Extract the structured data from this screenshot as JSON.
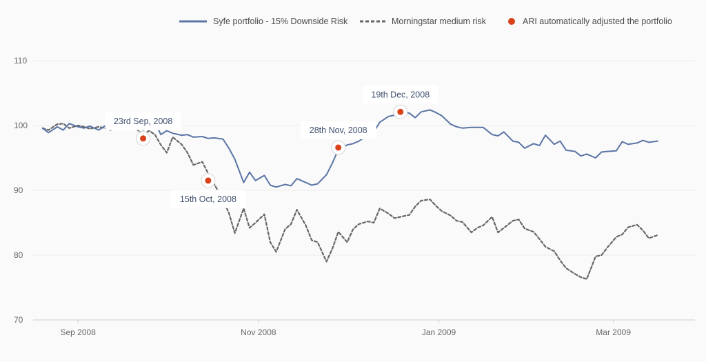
{
  "chart_data": {
    "type": "line",
    "xlabel": "",
    "ylabel": "",
    "ylim": [
      70,
      110
    ],
    "yticks": [
      "70",
      "80",
      "90",
      "100",
      "110"
    ],
    "xticks": [
      "Sep 2008",
      "Nov 2008",
      "Jan 2009",
      "Mar 2009"
    ],
    "grid": "horizontal",
    "legend_position": "top-right",
    "colors": {
      "syfe": "#5a74a5",
      "morningstar": "#666666",
      "ari": "#d9421a"
    },
    "legend": [
      {
        "label": "Syfe portfolio - 15% Downside Risk",
        "style": "solid-line"
      },
      {
        "label": "Morningstar medium risk",
        "style": "dashed-line"
      },
      {
        "label": "ARI automatically adjusted the portfolio",
        "style": "marker"
      }
    ],
    "series": [
      {
        "name": "Syfe portfolio - 15% Downside Risk",
        "style": "solid",
        "points": [
          [
            "2008-08-20",
            99.6
          ],
          [
            "2008-08-22",
            98.9
          ],
          [
            "2008-08-25",
            99.8
          ],
          [
            "2008-08-27",
            99.3
          ],
          [
            "2008-08-29",
            100.3
          ],
          [
            "2008-09-01",
            99.8
          ],
          [
            "2008-09-03",
            99.6
          ],
          [
            "2008-09-05",
            99.9
          ],
          [
            "2008-09-08",
            99.3
          ],
          [
            "2008-09-10",
            99.9
          ],
          [
            "2008-09-12",
            99.5
          ],
          [
            "2008-09-15",
            101.0
          ],
          [
            "2008-09-17",
            100.3
          ],
          [
            "2008-09-19",
            100.5
          ],
          [
            "2008-09-22",
            100.2
          ],
          [
            "2008-09-23",
            99.3
          ],
          [
            "2008-09-25",
            99.8
          ],
          [
            "2008-09-27",
            100.5
          ],
          [
            "2008-09-29",
            98.6
          ],
          [
            "2008-10-01",
            99.2
          ],
          [
            "2008-10-03",
            98.8
          ],
          [
            "2008-10-06",
            98.5
          ],
          [
            "2008-10-08",
            98.6
          ],
          [
            "2008-10-10",
            98.2
          ],
          [
            "2008-10-13",
            98.3
          ],
          [
            "2008-10-15",
            98.0
          ],
          [
            "2008-10-17",
            98.1
          ],
          [
            "2008-10-20",
            97.9
          ],
          [
            "2008-10-22",
            96.5
          ],
          [
            "2008-10-24",
            94.8
          ],
          [
            "2008-10-27",
            91.2
          ],
          [
            "2008-10-29",
            92.8
          ],
          [
            "2008-10-31",
            91.5
          ],
          [
            "2008-11-03",
            92.3
          ],
          [
            "2008-11-05",
            90.8
          ],
          [
            "2008-11-07",
            90.5
          ],
          [
            "2008-11-10",
            90.9
          ],
          [
            "2008-11-12",
            90.7
          ],
          [
            "2008-11-14",
            91.8
          ],
          [
            "2008-11-17",
            91.2
          ],
          [
            "2008-11-19",
            90.8
          ],
          [
            "2008-11-21",
            91.0
          ],
          [
            "2008-11-24",
            92.4
          ],
          [
            "2008-11-26",
            94.2
          ],
          [
            "2008-11-28",
            96.3
          ],
          [
            "2008-12-01",
            97.0
          ],
          [
            "2008-12-03",
            97.2
          ],
          [
            "2008-12-05",
            97.6
          ],
          [
            "2008-12-08",
            98.5
          ],
          [
            "2008-12-10",
            99.0
          ],
          [
            "2008-12-12",
            100.5
          ],
          [
            "2008-12-15",
            101.4
          ],
          [
            "2008-12-17",
            101.6
          ],
          [
            "2008-12-19",
            102.2
          ],
          [
            "2008-12-22",
            101.9
          ],
          [
            "2008-12-24",
            101.2
          ],
          [
            "2008-12-26",
            102.1
          ],
          [
            "2008-12-29",
            102.4
          ],
          [
            "2008-12-31",
            102.0
          ],
          [
            "2009-01-02",
            101.5
          ],
          [
            "2009-01-05",
            100.2
          ],
          [
            "2009-01-07",
            99.8
          ],
          [
            "2009-01-09",
            99.6
          ],
          [
            "2009-01-12",
            99.7
          ],
          [
            "2009-01-14",
            99.7
          ],
          [
            "2009-01-16",
            99.7
          ],
          [
            "2009-01-19",
            98.6
          ],
          [
            "2009-01-21",
            98.4
          ],
          [
            "2009-01-23",
            99.0
          ],
          [
            "2009-01-26",
            97.6
          ],
          [
            "2009-01-28",
            97.4
          ],
          [
            "2009-01-30",
            96.5
          ],
          [
            "2009-02-02",
            97.2
          ],
          [
            "2009-02-04",
            96.9
          ],
          [
            "2009-02-06",
            98.5
          ],
          [
            "2009-02-09",
            97.1
          ],
          [
            "2009-02-11",
            97.6
          ],
          [
            "2009-02-13",
            96.2
          ],
          [
            "2009-02-16",
            96.0
          ],
          [
            "2009-02-18",
            95.3
          ],
          [
            "2009-02-20",
            95.6
          ],
          [
            "2009-02-23",
            95.0
          ],
          [
            "2009-02-25",
            95.9
          ],
          [
            "2009-02-27",
            96.0
          ],
          [
            "2009-03-02",
            96.1
          ],
          [
            "2009-03-04",
            97.5
          ],
          [
            "2009-03-06",
            97.1
          ],
          [
            "2009-03-09",
            97.3
          ],
          [
            "2009-03-11",
            97.7
          ],
          [
            "2009-03-13",
            97.4
          ],
          [
            "2009-03-16",
            97.6
          ]
        ]
      },
      {
        "name": "Morningstar medium risk",
        "style": "dashed",
        "points": [
          [
            "2008-08-20",
            99.6
          ],
          [
            "2008-08-22",
            99.3
          ],
          [
            "2008-08-25",
            100.2
          ],
          [
            "2008-08-27",
            100.3
          ],
          [
            "2008-08-29",
            99.6
          ],
          [
            "2008-09-01",
            100.0
          ],
          [
            "2008-09-03",
            99.8
          ],
          [
            "2008-09-05",
            99.5
          ],
          [
            "2008-09-08",
            99.8
          ],
          [
            "2008-09-10",
            99.6
          ],
          [
            "2008-09-12",
            99.3
          ],
          [
            "2008-09-15",
            100.9
          ],
          [
            "2008-09-17",
            100.4
          ],
          [
            "2008-09-19",
            100.0
          ],
          [
            "2008-09-22",
            99.0
          ],
          [
            "2008-09-23",
            98.5
          ],
          [
            "2008-09-25",
            99.2
          ],
          [
            "2008-09-27",
            98.6
          ],
          [
            "2008-09-29",
            97.0
          ],
          [
            "2008-10-01",
            95.8
          ],
          [
            "2008-10-03",
            98.2
          ],
          [
            "2008-10-06",
            97.1
          ],
          [
            "2008-10-08",
            95.8
          ],
          [
            "2008-10-10",
            93.9
          ],
          [
            "2008-10-13",
            94.4
          ],
          [
            "2008-10-15",
            92.6
          ],
          [
            "2008-10-17",
            91.0
          ],
          [
            "2008-10-20",
            88.5
          ],
          [
            "2008-10-22",
            86.5
          ],
          [
            "2008-10-24",
            83.4
          ],
          [
            "2008-10-27",
            87.2
          ],
          [
            "2008-10-29",
            84.2
          ],
          [
            "2008-10-31",
            85.0
          ],
          [
            "2008-11-03",
            86.3
          ],
          [
            "2008-11-05",
            82.0
          ],
          [
            "2008-11-07",
            80.5
          ],
          [
            "2008-11-10",
            84.0
          ],
          [
            "2008-11-12",
            84.8
          ],
          [
            "2008-11-14",
            87.0
          ],
          [
            "2008-11-17",
            84.6
          ],
          [
            "2008-11-19",
            82.3
          ],
          [
            "2008-11-21",
            82.0
          ],
          [
            "2008-11-24",
            79.0
          ],
          [
            "2008-11-26",
            81.0
          ],
          [
            "2008-11-28",
            83.6
          ],
          [
            "2008-12-01",
            82.0
          ],
          [
            "2008-12-03",
            84.0
          ],
          [
            "2008-12-05",
            84.8
          ],
          [
            "2008-12-08",
            85.2
          ],
          [
            "2008-12-10",
            85.0
          ],
          [
            "2008-12-12",
            87.2
          ],
          [
            "2008-12-15",
            86.4
          ],
          [
            "2008-12-17",
            85.7
          ],
          [
            "2008-12-19",
            85.9
          ],
          [
            "2008-12-22",
            86.2
          ],
          [
            "2008-12-24",
            87.5
          ],
          [
            "2008-12-26",
            88.4
          ],
          [
            "2008-12-29",
            88.6
          ],
          [
            "2008-12-31",
            87.6
          ],
          [
            "2009-01-02",
            86.8
          ],
          [
            "2009-01-05",
            86.1
          ],
          [
            "2009-01-07",
            85.3
          ],
          [
            "2009-01-09",
            85.1
          ],
          [
            "2009-01-12",
            83.5
          ],
          [
            "2009-01-14",
            84.2
          ],
          [
            "2009-01-16",
            84.6
          ],
          [
            "2009-01-19",
            85.9
          ],
          [
            "2009-01-21",
            83.5
          ],
          [
            "2009-01-23",
            84.2
          ],
          [
            "2009-01-26",
            85.3
          ],
          [
            "2009-01-28",
            85.5
          ],
          [
            "2009-01-30",
            84.1
          ],
          [
            "2009-02-02",
            83.6
          ],
          [
            "2009-02-04",
            82.5
          ],
          [
            "2009-02-06",
            81.3
          ],
          [
            "2009-02-09",
            80.6
          ],
          [
            "2009-02-11",
            79.2
          ],
          [
            "2009-02-13",
            78.0
          ],
          [
            "2009-02-16",
            77.1
          ],
          [
            "2009-02-18",
            76.6
          ],
          [
            "2009-02-20",
            76.3
          ],
          [
            "2009-02-23",
            79.8
          ],
          [
            "2009-02-25",
            80.0
          ],
          [
            "2009-02-27",
            81.2
          ],
          [
            "2009-03-02",
            82.8
          ],
          [
            "2009-03-04",
            83.2
          ],
          [
            "2009-03-06",
            84.3
          ],
          [
            "2009-03-09",
            84.7
          ],
          [
            "2009-03-11",
            83.8
          ],
          [
            "2009-03-13",
            82.6
          ],
          [
            "2009-03-16",
            83.1
          ]
        ]
      }
    ],
    "annotations": [
      {
        "label": "23rd Sep, 2008",
        "x": "2008-09-23",
        "y": 98.0,
        "label_side": "above"
      },
      {
        "label": "15th Oct, 2008",
        "x": "2008-10-15",
        "y": 91.5,
        "label_side": "below"
      },
      {
        "label": "28th Nov, 2008",
        "x": "2008-11-28",
        "y": 96.6,
        "label_side": "above"
      },
      {
        "label": "19th Dec, 2008",
        "x": "2008-12-19",
        "y": 102.1,
        "label_side": "above"
      }
    ]
  }
}
